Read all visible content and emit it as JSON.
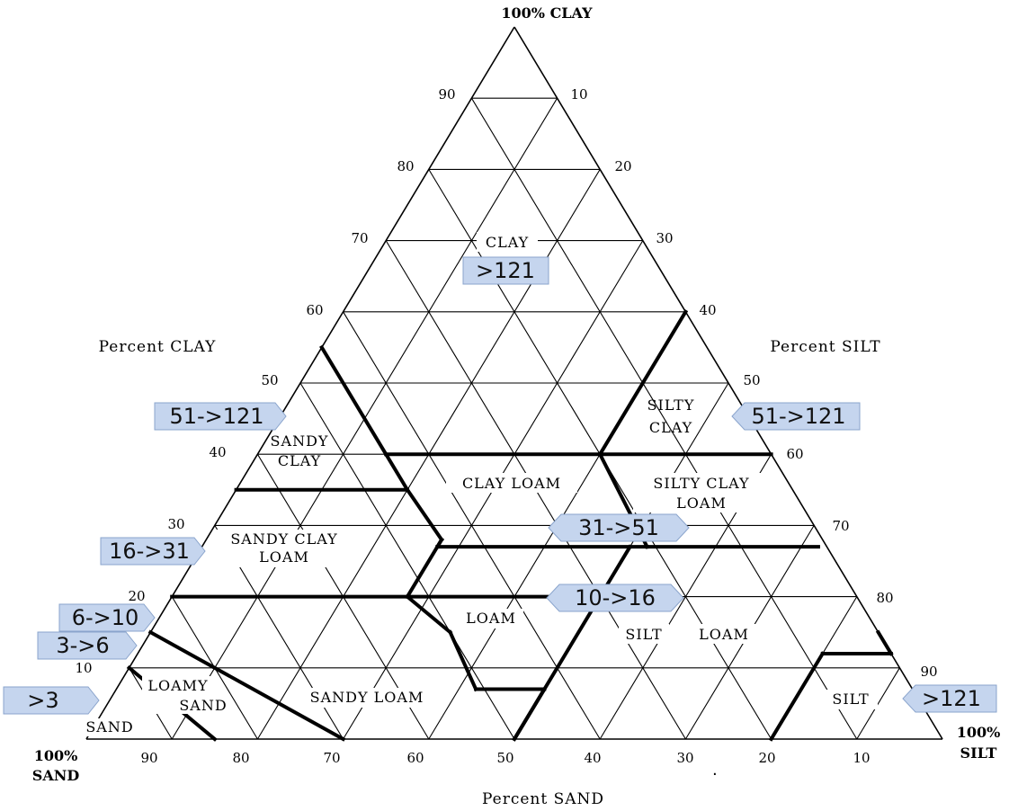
{
  "corners": {
    "top": "100% CLAY",
    "right_line1": "100%",
    "right_line2": "SILT",
    "left_line1": "100%",
    "left_line2": "SAND"
  },
  "axis_titles": {
    "left": "Percent CLAY",
    "right": "Percent SILT",
    "bottom": "Percent SAND"
  },
  "clay_ticks": [
    "90",
    "80",
    "70",
    "60",
    "50",
    "40",
    "30",
    "20",
    "10"
  ],
  "silt_ticks": [
    "10",
    "20",
    "30",
    "40",
    "50",
    "60",
    "70",
    "80",
    "90"
  ],
  "sand_ticks": [
    "90",
    "80",
    "70",
    "60",
    "50",
    "40",
    "30",
    "20",
    "10"
  ],
  "regions": {
    "clay": "CLAY",
    "sandy_clay_1": "SANDY",
    "sandy_clay_2": "CLAY",
    "silty_clay_1": "SILTY",
    "silty_clay_2": "CLAY",
    "clay_loam": "CLAY LOAM",
    "silty_clay_loam_1": "SILTY CLAY",
    "silty_clay_loam_2": "LOAM",
    "sandy_clay_loam_1": "SANDY CLAY",
    "sandy_clay_loam_2": "LOAM",
    "loam": "LOAM",
    "silt_loam_1": "SILT",
    "silt_loam_2": "LOAM",
    "loamy_sand_1": "LOAMY",
    "loamy_sand_2": "SAND",
    "sandy_loam": "SANDY LOAM",
    "sand": "SAND",
    "silt": "SILT"
  },
  "badges": {
    "clay": ">121",
    "left_50": "51->121",
    "right_50": "51->121",
    "left_30": "16->31",
    "center_31": "31->51",
    "center_10": "10->16",
    "left_20": "6->10",
    "left_15": "3->6",
    "left_10": ">3",
    "right_silt": ">121"
  }
}
